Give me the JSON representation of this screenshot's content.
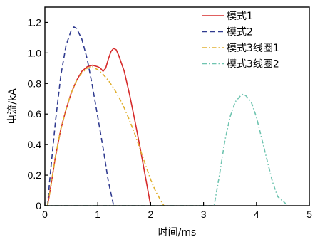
{
  "chart_data": {
    "type": "line",
    "xlabel": "时间/ms",
    "ylabel": "电流/kA",
    "xlim": [
      0,
      5
    ],
    "ylim": [
      0,
      1.3
    ],
    "xticks": [
      "0",
      "1",
      "2",
      "3",
      "4",
      "5"
    ],
    "yticks": [
      "0",
      "0.2",
      "0.4",
      "0.6",
      "0.8",
      "1.0",
      "1.2"
    ],
    "grid": false,
    "legend_position": "top-right",
    "series": [
      {
        "name": "模式1",
        "color": "#d62b2b",
        "style": "solid",
        "points": [
          [
            0.05,
            0
          ],
          [
            0.1,
            0.1
          ],
          [
            0.2,
            0.32
          ],
          [
            0.3,
            0.5
          ],
          [
            0.4,
            0.63
          ],
          [
            0.5,
            0.74
          ],
          [
            0.6,
            0.82
          ],
          [
            0.7,
            0.88
          ],
          [
            0.8,
            0.91
          ],
          [
            0.9,
            0.92
          ],
          [
            1.0,
            0.91
          ],
          [
            1.05,
            0.9
          ],
          [
            1.1,
            0.88
          ],
          [
            1.15,
            0.9
          ],
          [
            1.2,
            0.96
          ],
          [
            1.25,
            1.01
          ],
          [
            1.3,
            1.03
          ],
          [
            1.35,
            1.02
          ],
          [
            1.4,
            0.98
          ],
          [
            1.5,
            0.88
          ],
          [
            1.6,
            0.73
          ],
          [
            1.7,
            0.56
          ],
          [
            1.8,
            0.38
          ],
          [
            1.9,
            0.19
          ],
          [
            2.0,
            0.0
          ]
        ]
      },
      {
        "name": "模式2",
        "color": "#2f3a8f",
        "style": "dashed",
        "points": [
          [
            0.05,
            0
          ],
          [
            0.1,
            0.2
          ],
          [
            0.2,
            0.55
          ],
          [
            0.3,
            0.85
          ],
          [
            0.4,
            1.05
          ],
          [
            0.5,
            1.15
          ],
          [
            0.55,
            1.17
          ],
          [
            0.6,
            1.16
          ],
          [
            0.7,
            1.09
          ],
          [
            0.8,
            0.96
          ],
          [
            0.9,
            0.78
          ],
          [
            1.0,
            0.58
          ],
          [
            1.1,
            0.38
          ],
          [
            1.2,
            0.16
          ],
          [
            1.3,
            0.0
          ]
        ]
      },
      {
        "name": "模式3线圈1",
        "color": "#e0b030",
        "style": "dashdot",
        "points": [
          [
            0.05,
            0
          ],
          [
            0.1,
            0.1
          ],
          [
            0.2,
            0.32
          ],
          [
            0.3,
            0.5
          ],
          [
            0.4,
            0.63
          ],
          [
            0.5,
            0.74
          ],
          [
            0.6,
            0.82
          ],
          [
            0.7,
            0.87
          ],
          [
            0.8,
            0.9
          ],
          [
            0.9,
            0.91
          ],
          [
            1.0,
            0.89
          ],
          [
            1.1,
            0.86
          ],
          [
            1.2,
            0.82
          ],
          [
            1.3,
            0.77
          ],
          [
            1.4,
            0.71
          ],
          [
            1.5,
            0.64
          ],
          [
            1.6,
            0.56
          ],
          [
            1.7,
            0.47
          ],
          [
            1.8,
            0.37
          ],
          [
            1.9,
            0.27
          ],
          [
            2.0,
            0.17
          ],
          [
            2.1,
            0.09
          ],
          [
            2.2,
            0.03
          ],
          [
            2.25,
            0.0
          ]
        ]
      },
      {
        "name": "模式3线圈2",
        "color": "#6fc4b0",
        "style": "dashdot",
        "points": [
          [
            0,
            0
          ],
          [
            3.2,
            0
          ],
          [
            3.3,
            0.2
          ],
          [
            3.4,
            0.42
          ],
          [
            3.5,
            0.58
          ],
          [
            3.6,
            0.68
          ],
          [
            3.7,
            0.72
          ],
          [
            3.75,
            0.73
          ],
          [
            3.8,
            0.72
          ],
          [
            3.9,
            0.68
          ],
          [
            4.0,
            0.58
          ],
          [
            4.1,
            0.44
          ],
          [
            4.2,
            0.3
          ],
          [
            4.3,
            0.16
          ],
          [
            4.4,
            0.06
          ],
          [
            4.6,
            0.0
          ]
        ]
      }
    ]
  }
}
